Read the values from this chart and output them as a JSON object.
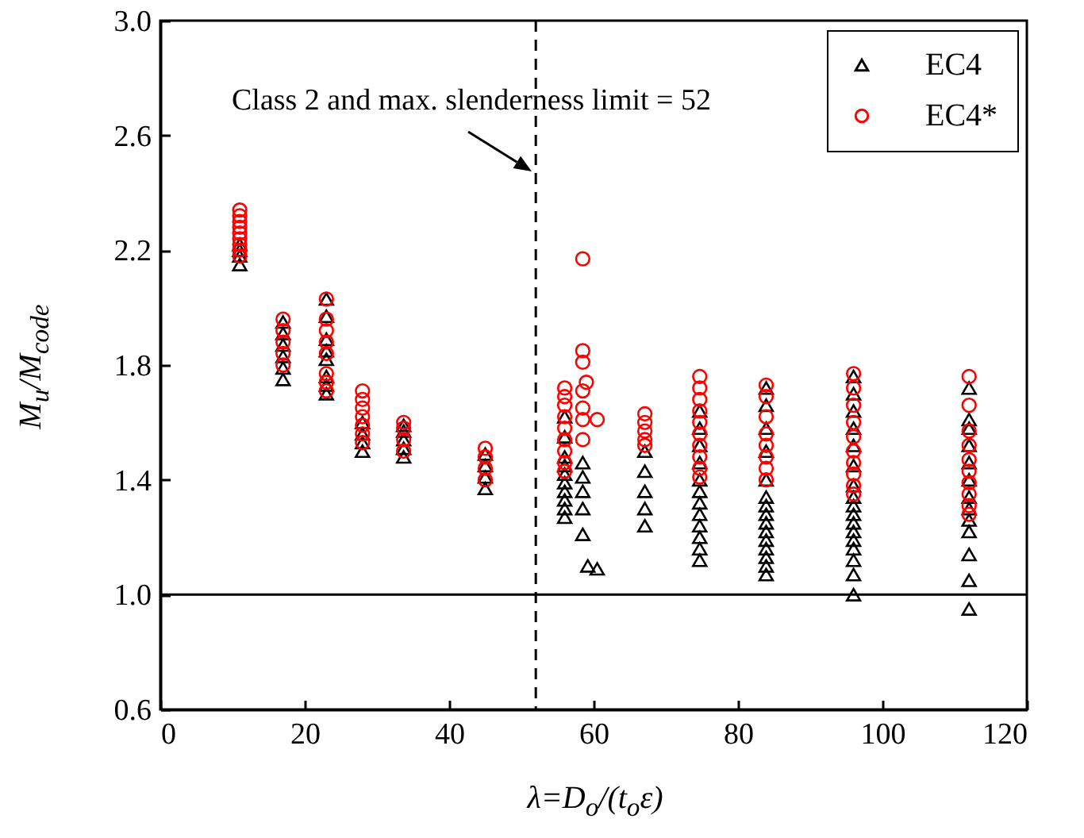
{
  "chart_data": {
    "type": "scatter",
    "xlabel": "λ=D$_{o}$/(t$_{o}$ε)",
    "ylabel": "M$_{u}$/M$_{code}$",
    "xlim": [
      0,
      120
    ],
    "xticks": [
      0,
      20,
      40,
      60,
      80,
      100,
      120
    ],
    "ylim": [
      0.6,
      3.0
    ],
    "yticks": [
      0.6,
      {
        "value": 1,
        "label": "1.0"
      },
      1.4,
      1.8,
      2.2,
      2.6,
      {
        "value": 3,
        "label": "3.0"
      }
    ],
    "grid": false,
    "legend": "top right",
    "ref_lines": [
      {
        "axis": "y",
        "value": 1,
        "color": "#000000",
        "line_style": "solid"
      },
      {
        "axis": "x",
        "value": 52,
        "color": "#000000",
        "line_style": "dashed"
      }
    ],
    "annotations": [
      "Class 2 and max. slenderness limit = 52"
    ],
    "series": [
      {
        "name": "EC4",
        "color": "#000000",
        "marker": "triangle",
        "x": [
          11,
          11,
          11,
          11,
          17,
          17,
          17,
          17,
          17,
          17,
          23,
          23,
          23,
          23,
          23,
          23,
          23,
          23,
          28,
          28,
          28,
          28,
          33.7,
          33.7,
          33.7,
          33.7,
          33.7,
          45,
          45,
          45,
          45,
          56,
          56,
          56,
          56,
          56,
          56,
          56,
          56,
          56,
          56,
          58.5,
          58.5,
          58.5,
          58.5,
          58.5,
          59.2,
          60.5,
          67.1,
          67.1,
          67.1,
          67.1,
          67.1,
          74.7,
          74.7,
          74.7,
          74.7,
          74.7,
          74.7,
          74.7,
          74.7,
          74.7,
          74.7,
          74.7,
          74.7,
          83.9,
          83.9,
          83.9,
          83.9,
          83.9,
          83.9,
          83.9,
          83.9,
          83.9,
          83.9,
          83.9,
          83.9,
          83.9,
          83.9,
          83.9,
          96,
          96,
          96,
          96,
          96,
          96,
          96,
          96,
          96,
          96,
          96,
          96,
          96,
          96,
          96,
          96,
          96,
          112,
          112,
          112,
          112,
          112,
          112,
          112,
          112,
          112,
          112,
          112,
          112,
          112
        ],
        "values": [
          2.15,
          2.18,
          2.2,
          2.22,
          1.75,
          1.79,
          1.83,
          1.87,
          1.91,
          1.95,
          2.03,
          1.97,
          1.89,
          1.85,
          1.82,
          1.76,
          1.73,
          1.7,
          1.5,
          1.53,
          1.56,
          1.6,
          1.48,
          1.51,
          1.54,
          1.57,
          1.59,
          1.37,
          1.41,
          1.45,
          1.49,
          1.27,
          1.3,
          1.33,
          1.36,
          1.39,
          1.42,
          1.45,
          1.48,
          1.55,
          1.62,
          1.46,
          1.41,
          1.36,
          1.3,
          1.21,
          1.1,
          1.09,
          1.5,
          1.43,
          1.36,
          1.3,
          1.24,
          1.12,
          1.16,
          1.2,
          1.24,
          1.28,
          1.32,
          1.36,
          1.4,
          1.46,
          1.52,
          1.58,
          1.64,
          1.07,
          1.1,
          1.13,
          1.16,
          1.19,
          1.22,
          1.25,
          1.28,
          1.31,
          1.34,
          1.4,
          1.5,
          1.58,
          1.66,
          1.72,
          1.0,
          1.07,
          1.12,
          1.16,
          1.19,
          1.22,
          1.25,
          1.28,
          1.31,
          1.34,
          1.38,
          1.45,
          1.52,
          1.58,
          1.64,
          1.7,
          1.76,
          0.95,
          1.05,
          1.14,
          1.22,
          1.26,
          1.3,
          1.34,
          1.4,
          1.46,
          1.52,
          1.58,
          1.61,
          1.72
        ]
      },
      {
        "name": "EC4*",
        "color": "#ff0000",
        "marker": "circle",
        "x": [
          11,
          11,
          11,
          11,
          11,
          11,
          11,
          11,
          11,
          17,
          17,
          17,
          17,
          17,
          23,
          23,
          23,
          23,
          23,
          23,
          23,
          23,
          28,
          28,
          28,
          28,
          28,
          28,
          28,
          33.7,
          33.7,
          33.7,
          33.7,
          45,
          45,
          45,
          45,
          56,
          56,
          56,
          56,
          56,
          56,
          56,
          56,
          56,
          58.5,
          58.5,
          58.5,
          58.5,
          58.5,
          58.5,
          58.5,
          59,
          60.5,
          67.1,
          67.1,
          67.1,
          67.1,
          67.1,
          74.7,
          74.7,
          74.7,
          74.7,
          74.7,
          74.7,
          74.7,
          74.7,
          74.7,
          74.7,
          83.9,
          83.9,
          83.9,
          83.9,
          83.9,
          83.9,
          83.9,
          83.9,
          96,
          96,
          96,
          96,
          96,
          96,
          96,
          96,
          96,
          96,
          112,
          112,
          112,
          112,
          112,
          112,
          112,
          112,
          112,
          112
        ],
        "values": [
          2.18,
          2.2,
          2.22,
          2.24,
          2.26,
          2.28,
          2.3,
          2.32,
          2.34,
          1.8,
          1.84,
          1.88,
          1.92,
          1.96,
          2.03,
          1.96,
          1.92,
          1.88,
          1.84,
          1.77,
          1.74,
          1.71,
          1.71,
          1.68,
          1.65,
          1.62,
          1.59,
          1.56,
          1.53,
          1.5,
          1.54,
          1.58,
          1.6,
          1.4,
          1.44,
          1.48,
          1.51,
          1.72,
          1.69,
          1.66,
          1.62,
          1.58,
          1.54,
          1.5,
          1.46,
          1.43,
          2.17,
          1.85,
          1.81,
          1.71,
          1.65,
          1.61,
          1.54,
          1.74,
          1.61,
          1.63,
          1.6,
          1.57,
          1.54,
          1.52,
          1.76,
          1.72,
          1.68,
          1.64,
          1.6,
          1.56,
          1.52,
          1.48,
          1.44,
          1.41,
          1.73,
          1.69,
          1.62,
          1.56,
          1.52,
          1.48,
          1.44,
          1.4,
          1.77,
          1.72,
          1.66,
          1.6,
          1.55,
          1.5,
          1.46,
          1.42,
          1.38,
          1.35,
          1.76,
          1.66,
          1.57,
          1.52,
          1.47,
          1.43,
          1.39,
          1.35,
          1.31,
          1.28
        ]
      }
    ]
  }
}
